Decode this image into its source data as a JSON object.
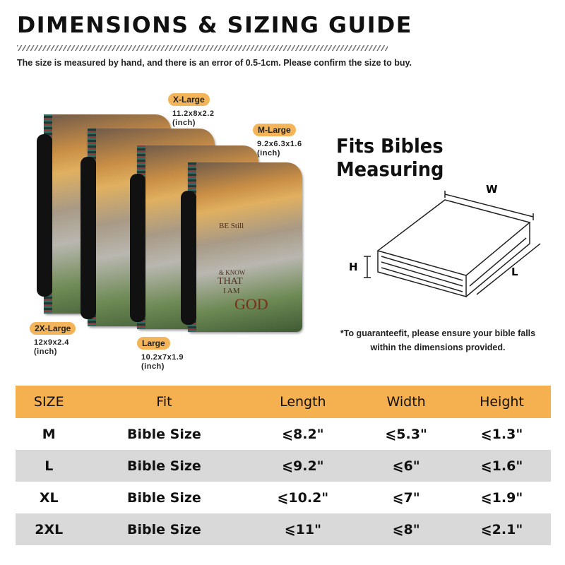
{
  "title": "DIMENSIONS & SIZING GUIDE",
  "note": "The size is measured by hand, and there is an error of 0.5-1cm. Please confirm the size to buy.",
  "sizes": [
    {
      "label": "X-Large",
      "dims": "11.2x8x2.2",
      "unit": "(inch)"
    },
    {
      "label": "M-Large",
      "dims": "9.2x6.3x1.6",
      "unit": "(inch)"
    },
    {
      "label": "2X-Large",
      "dims": "12x9x2.4",
      "unit": "(inch)"
    },
    {
      "label": "Large",
      "dims": "10.2x7x1.9",
      "unit": "(inch)"
    }
  ],
  "cover_art": {
    "line1": "BE Still",
    "line2": "& KNOW",
    "line3": "THAT",
    "line4": "I AM",
    "line5": "GOD"
  },
  "fits_title": "Fits Bibles Measuring",
  "diagram": {
    "w": "W",
    "h": "H",
    "l": "L"
  },
  "guarantee": "*To guaranteefit, please ensure your bible falls within the dimensions provided.",
  "colors": {
    "accent": "#f5b04f",
    "row_alt": "#d9d9d9"
  },
  "table": {
    "headers": [
      "SIZE",
      "Fit",
      "Length",
      "Width",
      "Height"
    ],
    "rows": [
      [
        "M",
        "Bible Size",
        "⩽8.2\"",
        "⩽5.3\"",
        "⩽1.3\""
      ],
      [
        "L",
        "Bible Size",
        "⩽9.2\"",
        "⩽6\"",
        "⩽1.6\""
      ],
      [
        "XL",
        "Bible Size",
        "⩽10.2\"",
        "⩽7\"",
        "⩽1.9\""
      ],
      [
        "2XL",
        "Bible Size",
        "⩽11\"",
        "⩽8\"",
        "⩽2.1\""
      ]
    ]
  }
}
